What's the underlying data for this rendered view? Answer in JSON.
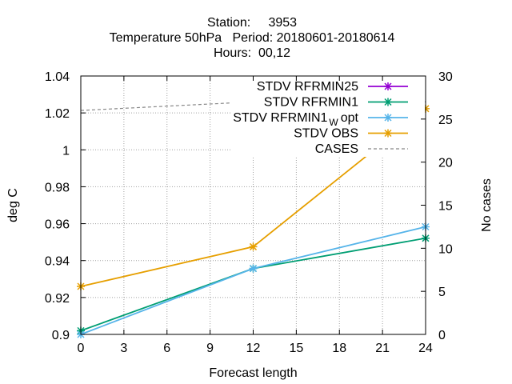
{
  "chart_data": {
    "type": "line",
    "title_lines": [
      "Station:     3953",
      "Temperature 50hPa   Period: 20180601-20180614",
      "Hours:  00,12"
    ],
    "xlabel": "Forecast length",
    "ylabel": "deg C",
    "y2label": "No cases",
    "xlim": [
      0,
      24
    ],
    "ylim": [
      0.9,
      1.04
    ],
    "y2lim": [
      0,
      30
    ],
    "xticks": [
      "0",
      "3",
      "6",
      "9",
      "12",
      "15",
      "18",
      "21",
      "24"
    ],
    "yticks": [
      "0.9",
      "0.92",
      "0.94",
      "0.96",
      "0.98",
      "1",
      "1.02",
      "1.04"
    ],
    "y2ticks": [
      "0",
      "5",
      "10",
      "15",
      "20",
      "25",
      "30"
    ],
    "grid": true,
    "legend_position": "top-right",
    "series": [
      {
        "name": "STDV RFRMIN25",
        "color": "#9400d3",
        "axis": "y",
        "x": [
          0,
          12,
          24
        ],
        "values": [
          0.902,
          0.9357,
          0.9521
        ],
        "marker": "x",
        "legend_only": true
      },
      {
        "name": "STDV RFRMIN1",
        "color": "#009e73",
        "axis": "y",
        "x": [
          0,
          12,
          24
        ],
        "values": [
          0.902,
          0.9357,
          0.9521
        ],
        "marker": "x"
      },
      {
        "name": "STDV RFRMIN1",
        "name_suffix": "opt",
        "name_subscript": "W",
        "color": "#56b4e9",
        "axis": "y",
        "x": [
          0,
          12,
          24
        ],
        "values": [
          0.9,
          0.9357,
          0.9583
        ],
        "marker": "x"
      },
      {
        "name": "STDV OBS",
        "color": "#e69f00",
        "axis": "y",
        "x": [
          0,
          12,
          24
        ],
        "values": [
          0.926,
          0.9475,
          1.0223
        ],
        "marker": "x"
      },
      {
        "name": "CASES",
        "color": "#888888",
        "axis": "y2",
        "x": [
          0,
          12,
          24
        ],
        "values": [
          26,
          27,
          27
        ],
        "dashed": true
      }
    ]
  }
}
